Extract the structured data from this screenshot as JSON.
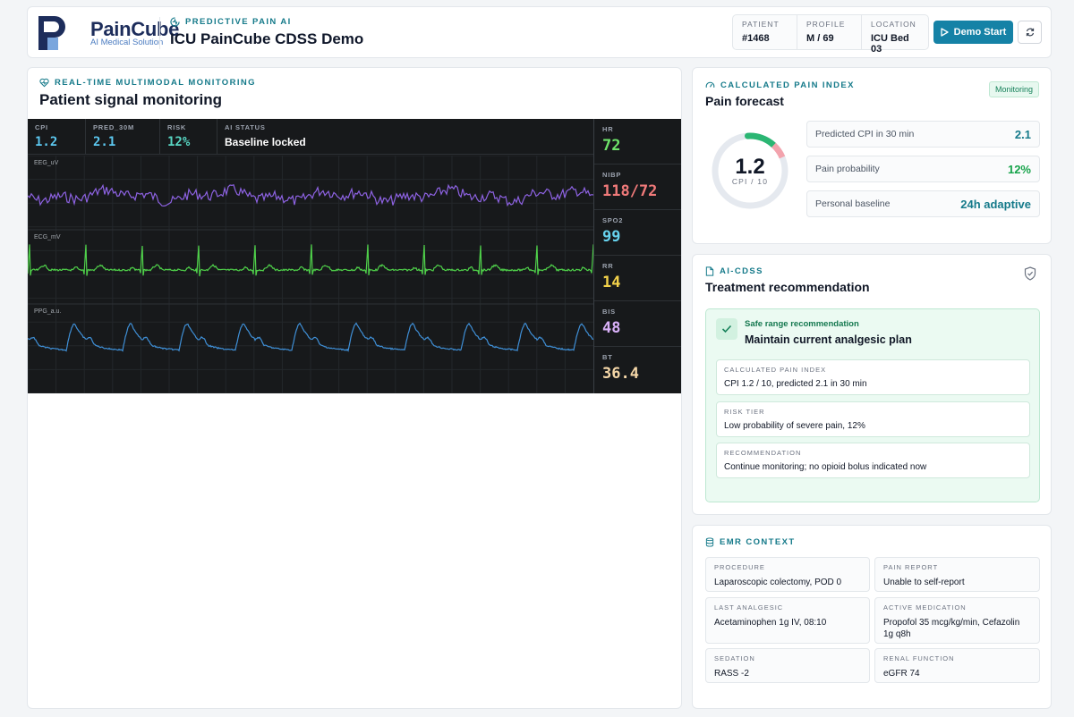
{
  "header": {
    "brand": "PainCube",
    "brand_sub": "AI Medical Solution",
    "eyebrow": "PREDICTIVE PAIN AI",
    "title": "ICU PainCube CDSS Demo",
    "patient": [
      {
        "label": "PATIENT",
        "value": "#1468"
      },
      {
        "label": "PROFILE",
        "value": "M / 69"
      },
      {
        "label": "LOCATION",
        "value": "ICU Bed 03"
      }
    ],
    "demo_button": "Demo Start",
    "refresh_icon": "refresh-icon"
  },
  "monitoring": {
    "eyebrow": "REAL-TIME MULTIMODAL MONITORING",
    "title": "Patient signal monitoring",
    "top": [
      {
        "label": "CPI",
        "value": "1.2"
      },
      {
        "label": "PRED_30M",
        "value": "2.1"
      },
      {
        "label": "RISK",
        "value": "12%"
      },
      {
        "label": "AI STATUS",
        "value": "Baseline locked"
      }
    ],
    "traces": [
      "EEG_uV",
      "ECG_mV",
      "PPG_a.u."
    ],
    "vitals": [
      {
        "label": "HR",
        "value": "72",
        "color": "#6ee36a"
      },
      {
        "label": "NIBP",
        "value": "118/72",
        "color": "#f07a7a"
      },
      {
        "label": "SPO2",
        "value": "99",
        "color": "#67d3ee"
      },
      {
        "label": "RR",
        "value": "14",
        "color": "#f2d14a"
      },
      {
        "label": "BIS",
        "value": "48",
        "color": "#d8b0f7"
      },
      {
        "label": "BT",
        "value": "36.4",
        "color": "#f5d7a8"
      }
    ],
    "trace_colors": {
      "eeg": "#8d62e2",
      "ecg": "#4fd14a",
      "ppg": "#3f8fd6"
    }
  },
  "forecast": {
    "eyebrow": "CALCULATED PAIN INDEX",
    "title": "Pain forecast",
    "badge": "Monitoring",
    "cpi": "1.2",
    "cpi_unit": "CPI / 10",
    "rows": [
      {
        "label": "Predicted CPI in 30 min",
        "value": "2.1"
      },
      {
        "label": "Pain probability",
        "value": "12%"
      },
      {
        "label": "Personal baseline",
        "value": "24h adaptive"
      }
    ]
  },
  "recommendation": {
    "eyebrow": "AI-CDSS",
    "title": "Treatment recommendation",
    "box_label": "Safe range recommendation",
    "box_title": "Maintain current analgesic plan",
    "items": [
      {
        "label": "CALCULATED PAIN INDEX",
        "value": "CPI 1.2 / 10, predicted 2.1 in 30 min"
      },
      {
        "label": "RISK TIER",
        "value": "Low probability of severe pain, 12%"
      },
      {
        "label": "RECOMMENDATION",
        "value": "Continue monitoring; no opioid bolus indicated now"
      }
    ]
  },
  "emr": {
    "eyebrow": "EMR CONTEXT",
    "items": [
      {
        "label": "PROCEDURE",
        "value": "Laparoscopic colectomy, POD 0"
      },
      {
        "label": "PAIN REPORT",
        "value": "Unable to self-report"
      },
      {
        "label": "LAST ANALGESIC",
        "value": "Acetaminophen 1g IV, 08:10"
      },
      {
        "label": "ACTIVE MEDICATION",
        "value": "Propofol 35 mcg/kg/min, Cefazolin 1g q8h"
      },
      {
        "label": "SEDATION",
        "value": "RASS -2"
      },
      {
        "label": "RENAL FUNCTION",
        "value": "eGFR 74"
      }
    ]
  }
}
